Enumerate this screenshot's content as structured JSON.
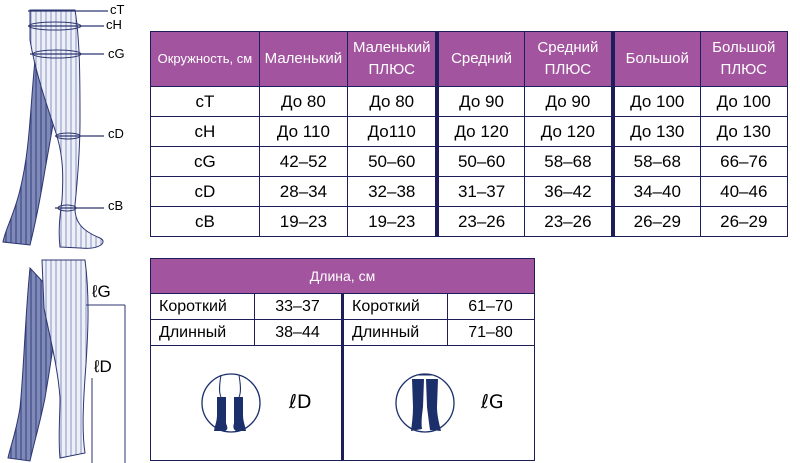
{
  "diagram_top": {
    "labels": [
      "cT",
      "cH",
      "cG",
      "cD",
      "cB"
    ]
  },
  "diagram_bottom": {
    "labels": [
      "ℓG",
      "ℓD"
    ]
  },
  "size_table": {
    "headers": [
      [
        "Окружность, см"
      ],
      [
        "Маленький"
      ],
      [
        "Маленький",
        "ПЛЮС"
      ],
      [
        "Средний"
      ],
      [
        "Средний",
        "ПЛЮС"
      ],
      [
        "Большой"
      ],
      [
        "Большой",
        "ПЛЮС"
      ]
    ],
    "rows": [
      [
        "cT",
        "До 80",
        "До 80",
        "До 90",
        "До 90",
        "До 100",
        "До 100"
      ],
      [
        "cH",
        "До 110",
        "До110",
        "До 120",
        "До 120",
        "До 130",
        "До 130"
      ],
      [
        "cG",
        "42–52",
        "50–60",
        "50–60",
        "58–68",
        "58–68",
        "66–76"
      ],
      [
        "cD",
        "28–34",
        "32–38",
        "31–37",
        "36–42",
        "34–40",
        "40–46"
      ],
      [
        "cB",
        "19–23",
        "19–23",
        "23–26",
        "23–26",
        "26–29",
        "26–29"
      ]
    ]
  },
  "length_table": {
    "title": "Длина, см",
    "left": [
      {
        "label": "Короткий",
        "value": "33–37"
      },
      {
        "label": "Длинный",
        "value": "38–44"
      }
    ],
    "right": [
      {
        "label": "Короткий",
        "value": "61–70"
      },
      {
        "label": "Длинный",
        "value": "71–80"
      }
    ],
    "left_symbol": "ℓD",
    "right_symbol": "ℓG"
  },
  "colors": {
    "header_bg": "#a2559e",
    "border": "#1d1d5a",
    "stocking": "#1b2f6a"
  }
}
